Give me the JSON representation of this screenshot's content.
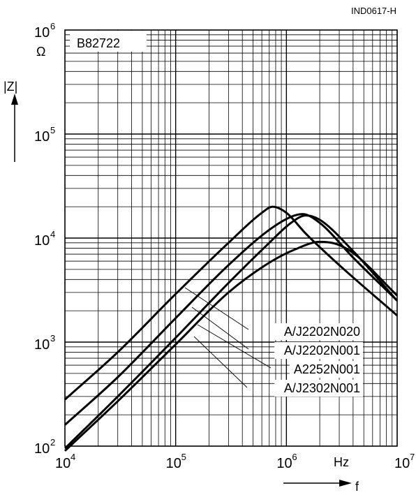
{
  "chart_data": {
    "type": "line",
    "title": "",
    "figure_id": "IND0617-H",
    "part_number": "B82722",
    "xlabel": "f",
    "x_unit": "Hz",
    "ylabel": "|Z|",
    "y_unit": "Ω",
    "x_scale": "log",
    "y_scale": "log",
    "xlim": [
      10000,
      10000000
    ],
    "ylim": [
      100,
      1000000
    ],
    "grid": true,
    "x_ticks": [
      {
        "base": "10",
        "exp": "4"
      },
      {
        "base": "10",
        "exp": "5"
      },
      {
        "base": "10",
        "exp": "6"
      },
      {
        "base": "10",
        "exp": "7"
      }
    ],
    "y_ticks": [
      {
        "base": "10",
        "exp": "2"
      },
      {
        "base": "10",
        "exp": "3"
      },
      {
        "base": "10",
        "exp": "4"
      },
      {
        "base": "10",
        "exp": "5"
      },
      {
        "base": "10",
        "exp": "6"
      }
    ],
    "series": [
      {
        "name": "A/J2202N020",
        "x": [
          10000,
          30000,
          100000,
          300000,
          600000,
          750000,
          1000000,
          1500000,
          3000000,
          10000000
        ],
        "y": [
          280,
          800,
          2900,
          9000,
          17500,
          20000,
          17500,
          11000,
          5500,
          1800
        ]
      },
      {
        "name": "A/J2202N001",
        "x": [
          10000,
          30000,
          100000,
          300000,
          700000,
          1100000,
          1400000,
          2000000,
          4000000,
          10000000
        ],
        "y": [
          160,
          460,
          1700,
          5500,
          12000,
          16000,
          17000,
          14000,
          6500,
          2500
        ]
      },
      {
        "name": "A2252N001",
        "x": [
          10000,
          30000,
          100000,
          300000,
          700000,
          1100000,
          1500000,
          2000000,
          4000000,
          10000000
        ],
        "y": [
          95,
          300,
          1100,
          3700,
          9000,
          14000,
          16500,
          15000,
          7500,
          2500
        ]
      },
      {
        "name": "A/J2302N001",
        "x": [
          10000,
          30000,
          100000,
          300000,
          700000,
          1200000,
          2000000,
          2800000,
          4000000,
          10000000
        ],
        "y": [
          90,
          270,
          950,
          3000,
          5800,
          7800,
          9200,
          8800,
          7200,
          2800
        ]
      }
    ],
    "annotations": [
      {
        "label": "A/J2202N020"
      },
      {
        "label": "A/J2202N001"
      },
      {
        "label": "A2252N001"
      },
      {
        "label": "A/J2302N001"
      }
    ]
  }
}
